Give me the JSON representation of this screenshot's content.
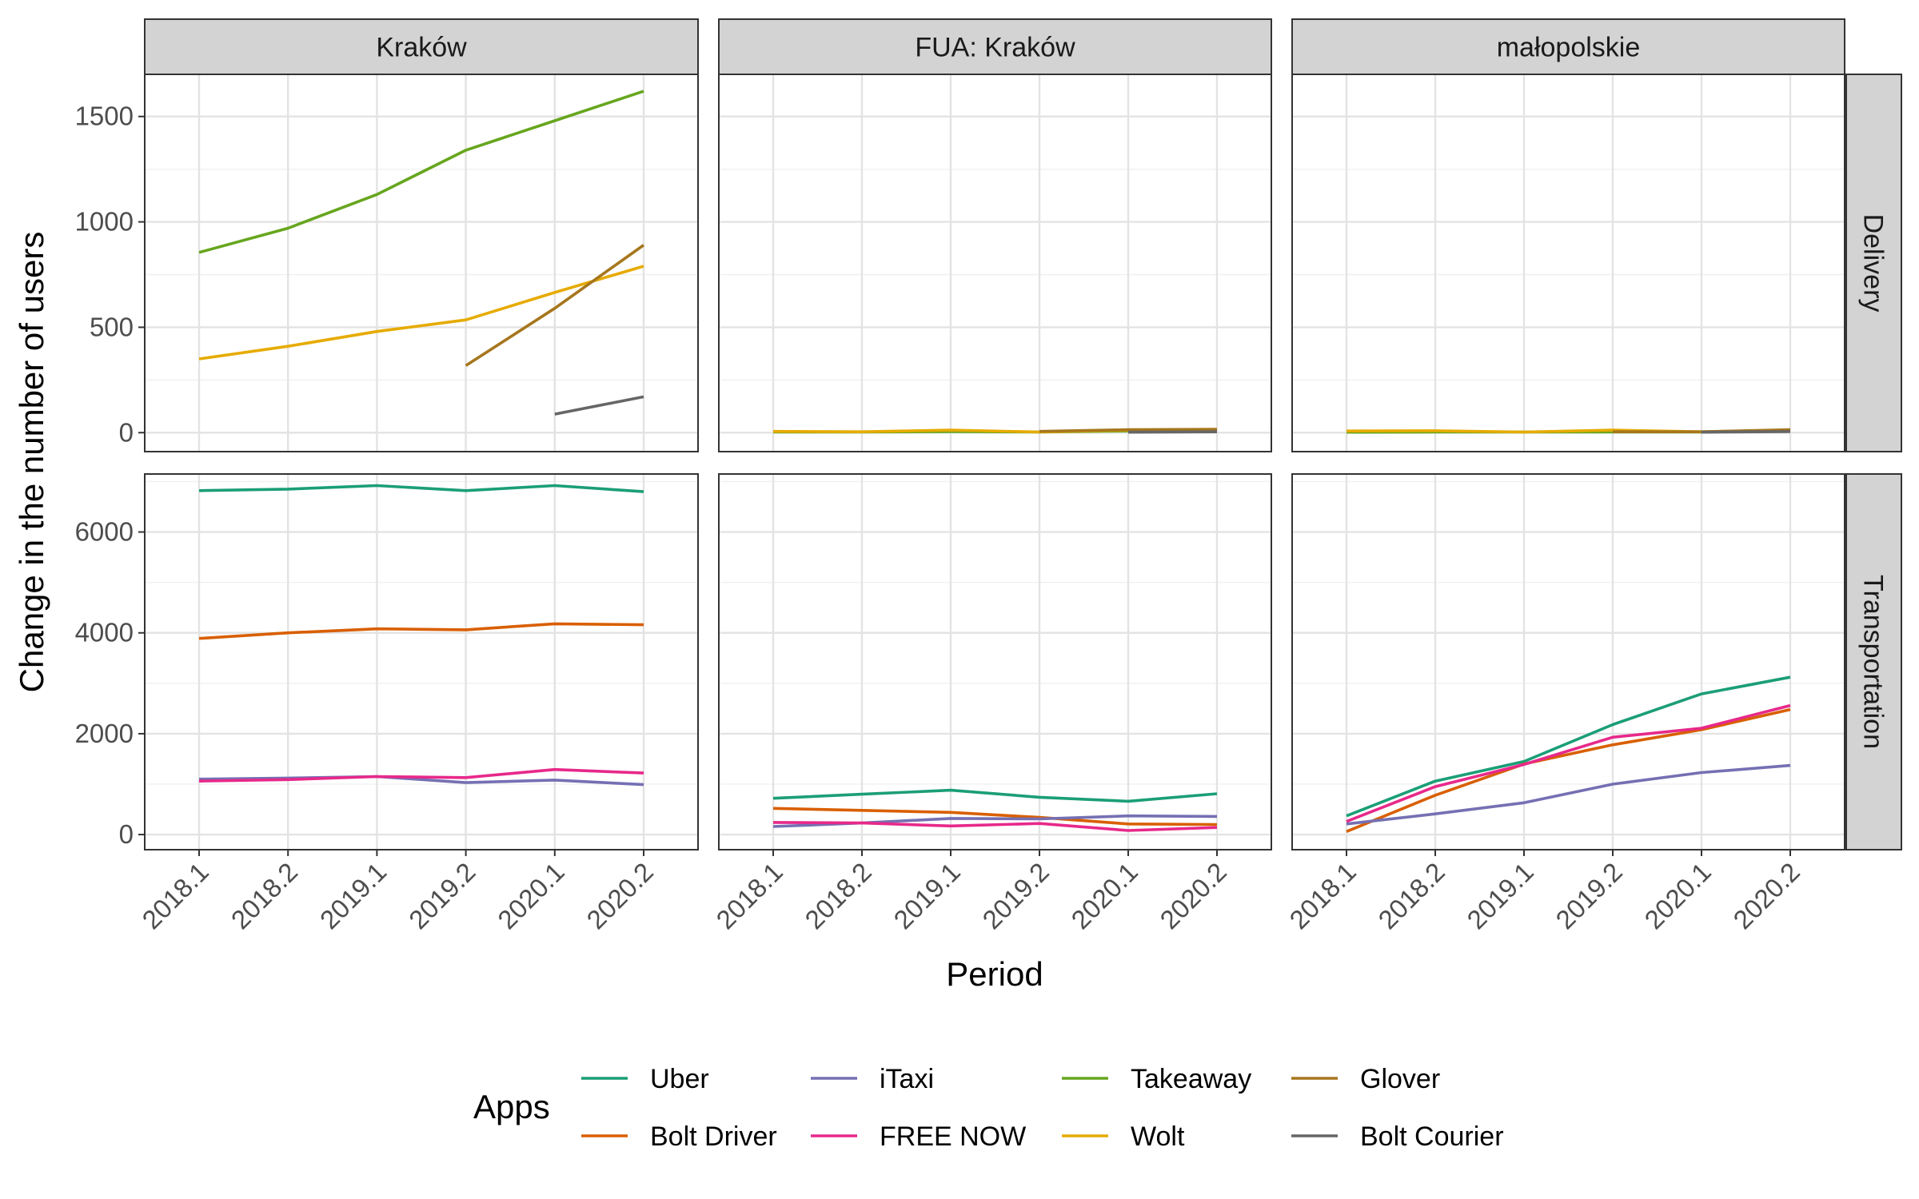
{
  "chart_data": {
    "type": "line",
    "facet_columns": [
      "Kraków",
      "FUA: Kraków",
      "małopolskie"
    ],
    "facet_rows": [
      "Delivery",
      "Transportation"
    ],
    "x": [
      "2018.1",
      "2018.2",
      "2019.1",
      "2019.2",
      "2020.1",
      "2020.2"
    ],
    "xlabel": "Period",
    "ylabel": "Change in the number of users",
    "y_ticks": {
      "Delivery": [
        0,
        500,
        1000,
        1500
      ],
      "Transportation": [
        0,
        2000,
        4000,
        6000
      ]
    },
    "ylim": {
      "Delivery": [
        -90,
        1700
      ],
      "Transportation": [
        -300,
        7150
      ]
    },
    "grid": true,
    "legend": {
      "title": "Apps",
      "position": "bottom",
      "entries": [
        "Uber",
        "Bolt Driver",
        "iTaxi",
        "FREE NOW",
        "Takeaway",
        "Wolt",
        "Glover",
        "Bolt Courier"
      ]
    },
    "colors": {
      "Uber": "#1b9e77",
      "Bolt Driver": "#d95f02",
      "iTaxi": "#7570b3",
      "FREE NOW": "#e7298a",
      "Takeaway": "#66a61e",
      "Wolt": "#e6ab02",
      "Glover": "#a6761d",
      "Bolt Courier": "#666666"
    },
    "panels": [
      {
        "row": "Delivery",
        "col": "Kraków",
        "series": [
          {
            "name": "Takeaway",
            "values": [
              855,
              970,
              1130,
              1340,
              1480,
              1620
            ]
          },
          {
            "name": "Wolt",
            "values": [
              350,
              410,
              480,
              535,
              665,
              790
            ]
          },
          {
            "name": "Glover",
            "values": [
              null,
              null,
              null,
              318,
              590,
              890
            ]
          },
          {
            "name": "Bolt Courier",
            "values": [
              null,
              null,
              null,
              null,
              88,
              170
            ]
          }
        ]
      },
      {
        "row": "Delivery",
        "col": "FUA: Kraków",
        "series": [
          {
            "name": "Takeaway",
            "values": [
              3,
              3,
              5,
              3,
              8,
              10
            ]
          },
          {
            "name": "Wolt",
            "values": [
              6,
              4,
              12,
              3,
              12,
              14
            ]
          },
          {
            "name": "Glover",
            "values": [
              null,
              null,
              null,
              6,
              14,
              16
            ]
          },
          {
            "name": "Bolt Courier",
            "values": [
              null,
              null,
              null,
              null,
              2,
              4
            ]
          }
        ]
      },
      {
        "row": "Delivery",
        "col": "małopolskie",
        "series": [
          {
            "name": "Takeaway",
            "values": [
              2,
              3,
              3,
              3,
              3,
              8
            ]
          },
          {
            "name": "Wolt",
            "values": [
              8,
              9,
              3,
              12,
              4,
              12
            ]
          },
          {
            "name": "Glover",
            "values": [
              null,
              null,
              null,
              4,
              4,
              14
            ]
          },
          {
            "name": "Bolt Courier",
            "values": [
              null,
              null,
              null,
              null,
              2,
              5
            ]
          }
        ]
      },
      {
        "row": "Transportation",
        "col": "Kraków",
        "series": [
          {
            "name": "Uber",
            "values": [
              6820,
              6850,
              6920,
              6820,
              6920,
              6800
            ]
          },
          {
            "name": "Bolt Driver",
            "values": [
              3890,
              4000,
              4080,
              4060,
              4180,
              4160
            ]
          },
          {
            "name": "iTaxi",
            "values": [
              1100,
              1120,
              1150,
              1030,
              1080,
              990
            ]
          },
          {
            "name": "FREE NOW",
            "values": [
              1060,
              1090,
              1150,
              1130,
              1290,
              1220
            ]
          }
        ]
      },
      {
        "row": "Transportation",
        "col": "FUA: Kraków",
        "series": [
          {
            "name": "Uber",
            "values": [
              720,
              800,
              880,
              740,
              660,
              810
            ]
          },
          {
            "name": "Bolt Driver",
            "values": [
              520,
              480,
              440,
              340,
              210,
              200
            ]
          },
          {
            "name": "iTaxi",
            "values": [
              160,
              230,
              320,
              310,
              370,
              360
            ]
          },
          {
            "name": "FREE NOW",
            "values": [
              240,
              230,
              170,
              220,
              80,
              140
            ]
          }
        ]
      },
      {
        "row": "Transportation",
        "col": "małopolskie",
        "series": [
          {
            "name": "Uber",
            "values": [
              370,
              1060,
              1450,
              2180,
              2790,
              3120
            ]
          },
          {
            "name": "Bolt Driver",
            "values": [
              60,
              780,
              1400,
              1780,
              2080,
              2480
            ]
          },
          {
            "name": "iTaxi",
            "values": [
              210,
              410,
              630,
              1000,
              1230,
              1370
            ]
          },
          {
            "name": "FREE NOW",
            "values": [
              260,
              950,
              1390,
              1930,
              2110,
              2560
            ]
          }
        ]
      }
    ]
  }
}
